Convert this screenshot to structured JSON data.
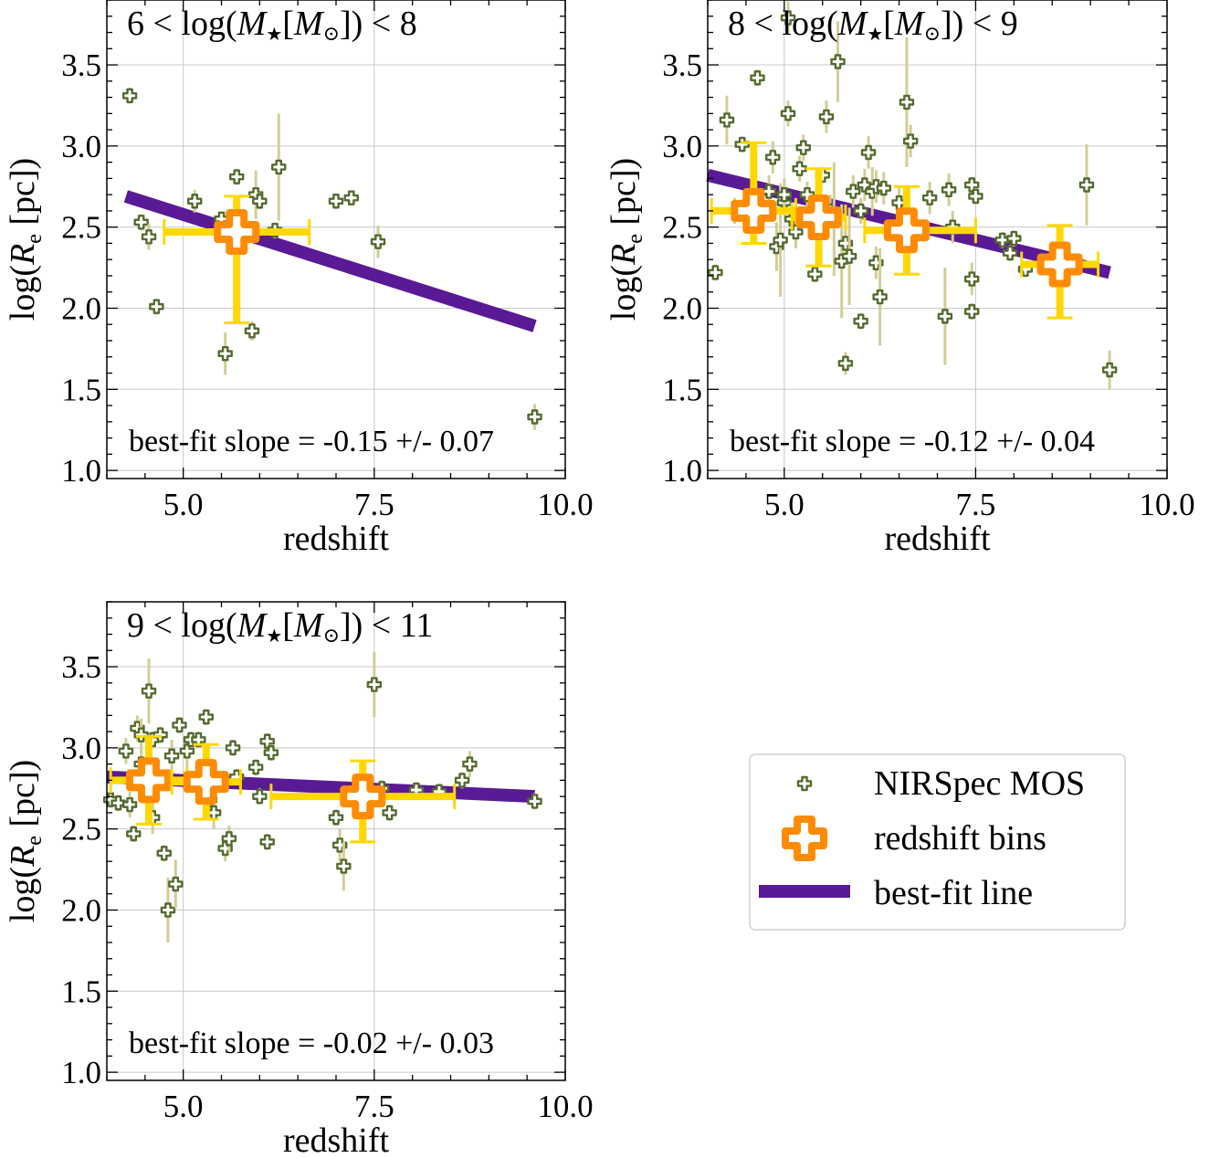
{
  "colors": {
    "point_edge": "#556b2f",
    "point_err": "#d2cd96",
    "bin_marker": "#ff8c00",
    "bin_err": "#ffd700",
    "fit_line": "#5a1a96",
    "grid": "#c8c8c8"
  },
  "legend": {
    "items": [
      {
        "label": "NIRSpec MOS",
        "kind": "points"
      },
      {
        "label": "redshift bins",
        "kind": "bins"
      },
      {
        "label": "best-fit line",
        "kind": "line"
      }
    ]
  },
  "chart_data": [
    {
      "type": "scatter",
      "title": "6 < log(M★[M⊙]) < 8",
      "title_parts": {
        "lead": "6 < log(",
        "m": "M",
        "star": "★",
        "open": "[",
        "msun": "M",
        "sun": "⊙",
        "close": "]) < 8"
      },
      "xlabel": "redshift",
      "ylabel_parts": {
        "lead": "log(",
        "r": "R",
        "sub": "e",
        "tail": " [pc])"
      },
      "xlim": [
        4.0,
        10.0
      ],
      "ylim": [
        0.95,
        3.9
      ],
      "xticks": [
        "5.0",
        "7.5",
        "10.0"
      ],
      "yticks": [
        "1.0",
        "1.5",
        "2.0",
        "2.5",
        "3.0",
        "3.5"
      ],
      "slope_text": "best-fit slope = -0.15 +/- 0.07",
      "fit_line": {
        "x": [
          4.25,
          9.6
        ],
        "y": [
          2.69,
          1.89
        ]
      },
      "points": [
        {
          "x": 4.3,
          "y": 3.31,
          "yerr": 0.05
        },
        {
          "x": 4.45,
          "y": 2.53,
          "yerr": 0.05
        },
        {
          "x": 4.55,
          "y": 2.44,
          "yerr": 0.08
        },
        {
          "x": 4.65,
          "y": 2.01,
          "yerr": 0.05
        },
        {
          "x": 5.15,
          "y": 2.66,
          "yerr": 0.07
        },
        {
          "x": 5.5,
          "y": 2.55,
          "yerr": 0.04
        },
        {
          "x": 5.55,
          "y": 1.72,
          "yerr": 0.13
        },
        {
          "x": 5.65,
          "y": 2.45,
          "yerr": 0.05
        },
        {
          "x": 5.7,
          "y": 2.81,
          "yerr": 0.05
        },
        {
          "x": 5.9,
          "y": 1.86,
          "yerr": 0.06
        },
        {
          "x": 5.95,
          "y": 2.7,
          "yerr": 0.15
        },
        {
          "x": 6.0,
          "y": 2.66,
          "yerr": 0.05
        },
        {
          "x": 6.2,
          "y": 2.48,
          "yerr": 0.05
        },
        {
          "x": 6.25,
          "y": 2.87,
          "yerr": 0.33
        },
        {
          "x": 7.0,
          "y": 2.66,
          "yerr": 0.04
        },
        {
          "x": 7.2,
          "y": 2.68,
          "yerr": 0.04
        },
        {
          "x": 7.55,
          "y": 2.41,
          "yerr": 0.1
        },
        {
          "x": 9.6,
          "y": 1.33,
          "yerr": 0.08
        }
      ],
      "bins": [
        {
          "x": 5.7,
          "y": 2.47,
          "xerr": [
            0.95,
            0.95
          ],
          "yerr": [
            0.56,
            0.22
          ]
        }
      ]
    },
    {
      "type": "scatter",
      "title": "8 < log(M★[M⊙]) < 9",
      "title_parts": {
        "lead": "8 < log(",
        "m": "M",
        "star": "★",
        "open": "[",
        "msun": "M",
        "sun": "⊙",
        "close": "]) < 9"
      },
      "xlabel": "redshift",
      "ylabel_parts": {
        "lead": "log(",
        "r": "R",
        "sub": "e",
        "tail": " [pc])"
      },
      "xlim": [
        4.0,
        10.0
      ],
      "ylim": [
        0.95,
        3.9
      ],
      "xticks": [
        "5.0",
        "7.5",
        "10.0"
      ],
      "yticks": [
        "1.0",
        "1.5",
        "2.0",
        "2.5",
        "3.0",
        "3.5"
      ],
      "slope_text": "best-fit slope = -0.12 +/- 0.04",
      "fit_line": {
        "x": [
          4.0,
          9.25
        ],
        "y": [
          2.82,
          2.22
        ]
      },
      "points": [
        {
          "x": 4.1,
          "y": 2.22,
          "yerr": 0.05
        },
        {
          "x": 4.25,
          "y": 3.16,
          "yerr": 0.15
        },
        {
          "x": 4.35,
          "y": 2.6,
          "yerr": 0.08
        },
        {
          "x": 4.45,
          "y": 3.01,
          "yerr": 0.05
        },
        {
          "x": 4.65,
          "y": 3.42,
          "yerr": 0.05
        },
        {
          "x": 4.8,
          "y": 2.72,
          "yerr": 0.1
        },
        {
          "x": 4.85,
          "y": 2.93,
          "yerr": 0.1
        },
        {
          "x": 4.9,
          "y": 2.38,
          "yerr": 0.15
        },
        {
          "x": 4.95,
          "y": 2.42,
          "yerr": 0.35
        },
        {
          "x": 5.0,
          "y": 2.65,
          "yerr": 0.08
        },
        {
          "x": 5.0,
          "y": 2.7,
          "yerr": 0.1
        },
        {
          "x": 5.05,
          "y": 3.79,
          "yerr": 0.1
        },
        {
          "x": 5.05,
          "y": 3.2,
          "yerr": 0.08
        },
        {
          "x": 5.1,
          "y": 2.55,
          "yerr": 0.1
        },
        {
          "x": 5.15,
          "y": 2.47,
          "yerr": 0.1
        },
        {
          "x": 5.2,
          "y": 2.86,
          "yerr": 0.08
        },
        {
          "x": 5.25,
          "y": 2.99,
          "yerr": 0.08
        },
        {
          "x": 5.3,
          "y": 2.7,
          "yerr": 0.08
        },
        {
          "x": 5.4,
          "y": 2.21,
          "yerr": 0.05
        },
        {
          "x": 5.5,
          "y": 2.82,
          "yerr": 0.05
        },
        {
          "x": 5.55,
          "y": 3.18,
          "yerr": 0.1
        },
        {
          "x": 5.6,
          "y": 2.6,
          "yerr": 0.1
        },
        {
          "x": 5.65,
          "y": 2.55,
          "yerr": 0.35
        },
        {
          "x": 5.7,
          "y": 3.52,
          "yerr": 0.25
        },
        {
          "x": 5.75,
          "y": 2.29,
          "yerr": 0.35
        },
        {
          "x": 5.8,
          "y": 2.4,
          "yerr": 0.1
        },
        {
          "x": 5.8,
          "y": 1.66,
          "yerr": 0.07
        },
        {
          "x": 5.85,
          "y": 2.32,
          "yerr": 0.3
        },
        {
          "x": 5.9,
          "y": 2.72,
          "yerr": 0.1
        },
        {
          "x": 6.0,
          "y": 1.92,
          "yerr": 0.05
        },
        {
          "x": 6.0,
          "y": 2.6,
          "yerr": 0.08
        },
        {
          "x": 6.05,
          "y": 2.76,
          "yerr": 0.1
        },
        {
          "x": 6.1,
          "y": 2.96,
          "yerr": 0.1
        },
        {
          "x": 6.15,
          "y": 2.72,
          "yerr": 0.15
        },
        {
          "x": 6.2,
          "y": 2.75,
          "yerr": 0.1
        },
        {
          "x": 6.2,
          "y": 2.28,
          "yerr": 0.1
        },
        {
          "x": 6.25,
          "y": 2.07,
          "yerr": 0.3
        },
        {
          "x": 6.3,
          "y": 2.74,
          "yerr": 0.1
        },
        {
          "x": 6.5,
          "y": 2.65,
          "yerr": 0.1
        },
        {
          "x": 6.6,
          "y": 3.27,
          "yerr": 0.4
        },
        {
          "x": 6.65,
          "y": 3.03,
          "yerr": 0.1
        },
        {
          "x": 6.9,
          "y": 2.68,
          "yerr": 0.1
        },
        {
          "x": 7.1,
          "y": 1.95,
          "yerr": 0.3
        },
        {
          "x": 7.15,
          "y": 2.73,
          "yerr": 0.1
        },
        {
          "x": 7.2,
          "y": 2.5,
          "yerr": 0.1
        },
        {
          "x": 7.45,
          "y": 2.76,
          "yerr": 0.05
        },
        {
          "x": 7.5,
          "y": 2.69,
          "yerr": 0.05
        },
        {
          "x": 7.45,
          "y": 2.18,
          "yerr": 0.1
        },
        {
          "x": 7.45,
          "y": 1.98,
          "yerr": 0.05
        },
        {
          "x": 7.85,
          "y": 2.42,
          "yerr": 0.05
        },
        {
          "x": 7.95,
          "y": 2.34,
          "yerr": 0.05
        },
        {
          "x": 8.0,
          "y": 2.43,
          "yerr": 0.05
        },
        {
          "x": 8.15,
          "y": 2.24,
          "yerr": 0.05
        },
        {
          "x": 8.95,
          "y": 2.76,
          "yerr": 0.25
        },
        {
          "x": 9.25,
          "y": 1.62,
          "yerr": 0.12
        }
      ],
      "bins": [
        {
          "x": 4.6,
          "y": 2.6,
          "xerr": [
            0.55,
            0.55
          ],
          "yerr": [
            0.2,
            0.42
          ]
        },
        {
          "x": 5.45,
          "y": 2.56,
          "xerr": [
            0.35,
            0.35
          ],
          "yerr": [
            0.3,
            0.3
          ]
        },
        {
          "x": 6.6,
          "y": 2.48,
          "xerr": [
            0.55,
            0.9
          ],
          "yerr": [
            0.27,
            0.27
          ]
        },
        {
          "x": 8.6,
          "y": 2.27,
          "xerr": [
            0.5,
            0.5
          ],
          "yerr": [
            0.33,
            0.24
          ]
        }
      ]
    },
    {
      "type": "scatter",
      "title": "9 < log(M★[M⊙]) < 11",
      "title_parts": {
        "lead": "9 < log(",
        "m": "M",
        "star": "★",
        "open": "[",
        "msun": "M",
        "sun": "⊙",
        "close": "]) < 11"
      },
      "xlabel": "redshift",
      "ylabel_parts": {
        "lead": "log(",
        "r": "R",
        "sub": "e",
        "tail": " [pc])"
      },
      "xlim": [
        4.0,
        10.0
      ],
      "ylim": [
        0.95,
        3.9
      ],
      "xticks": [
        "5.0",
        "7.5",
        "10.0"
      ],
      "yticks": [
        "1.0",
        "1.5",
        "2.0",
        "2.5",
        "3.0",
        "3.5"
      ],
      "slope_text": "best-fit slope = -0.02 +/- 0.03",
      "fit_line": {
        "x": [
          4.0,
          9.6
        ],
        "y": [
          2.82,
          2.7
        ]
      },
      "points": [
        {
          "x": 4.05,
          "y": 2.68,
          "yerr": 0.05
        },
        {
          "x": 4.15,
          "y": 2.66,
          "yerr": 0.05
        },
        {
          "x": 4.25,
          "y": 2.98,
          "yerr": 0.08
        },
        {
          "x": 4.3,
          "y": 2.65,
          "yerr": 0.08
        },
        {
          "x": 4.35,
          "y": 2.47,
          "yerr": 0.05
        },
        {
          "x": 4.4,
          "y": 3.12,
          "yerr": 0.08
        },
        {
          "x": 4.45,
          "y": 3.08,
          "yerr": 0.1
        },
        {
          "x": 4.45,
          "y": 2.9,
          "yerr": 0.1
        },
        {
          "x": 4.55,
          "y": 3.35,
          "yerr": 0.2
        },
        {
          "x": 4.6,
          "y": 3.05,
          "yerr": 0.05
        },
        {
          "x": 4.6,
          "y": 2.57,
          "yerr": 0.1
        },
        {
          "x": 4.7,
          "y": 3.08,
          "yerr": 0.05
        },
        {
          "x": 4.75,
          "y": 2.35,
          "yerr": 0.05
        },
        {
          "x": 4.8,
          "y": 2.0,
          "yerr": 0.2
        },
        {
          "x": 4.85,
          "y": 2.95,
          "yerr": 0.1
        },
        {
          "x": 4.9,
          "y": 2.16,
          "yerr": 0.15
        },
        {
          "x": 4.95,
          "y": 3.14,
          "yerr": 0.05
        },
        {
          "x": 5.05,
          "y": 2.98,
          "yerr": 0.1
        },
        {
          "x": 5.1,
          "y": 3.05,
          "yerr": 0.05
        },
        {
          "x": 5.2,
          "y": 3.05,
          "yerr": 0.05
        },
        {
          "x": 5.3,
          "y": 3.19,
          "yerr": 0.05
        },
        {
          "x": 5.35,
          "y": 2.68,
          "yerr": 0.1
        },
        {
          "x": 5.4,
          "y": 2.6,
          "yerr": 0.1
        },
        {
          "x": 5.55,
          "y": 2.38,
          "yerr": 0.08
        },
        {
          "x": 5.6,
          "y": 2.44,
          "yerr": 0.08
        },
        {
          "x": 5.65,
          "y": 3.0,
          "yerr": 0.05
        },
        {
          "x": 5.7,
          "y": 2.82,
          "yerr": 0.05
        },
        {
          "x": 5.95,
          "y": 2.88,
          "yerr": 0.05
        },
        {
          "x": 6.0,
          "y": 2.7,
          "yerr": 0.05
        },
        {
          "x": 6.1,
          "y": 2.42,
          "yerr": 0.05
        },
        {
          "x": 6.1,
          "y": 3.04,
          "yerr": 0.05
        },
        {
          "x": 6.15,
          "y": 2.97,
          "yerr": 0.05
        },
        {
          "x": 7.0,
          "y": 2.57,
          "yerr": 0.05
        },
        {
          "x": 7.05,
          "y": 2.4,
          "yerr": 0.1
        },
        {
          "x": 7.1,
          "y": 2.27,
          "yerr": 0.15
        },
        {
          "x": 7.5,
          "y": 3.39,
          "yerr": 0.2
        },
        {
          "x": 7.6,
          "y": 2.75,
          "yerr": 0.05
        },
        {
          "x": 7.7,
          "y": 2.6,
          "yerr": 0.05
        },
        {
          "x": 8.05,
          "y": 2.74,
          "yerr": 0.05
        },
        {
          "x": 8.35,
          "y": 2.73,
          "yerr": 0.05
        },
        {
          "x": 8.65,
          "y": 2.8,
          "yerr": 0.05
        },
        {
          "x": 8.75,
          "y": 2.9,
          "yerr": 0.08
        },
        {
          "x": 9.6,
          "y": 2.67,
          "yerr": 0.05
        }
      ],
      "bins": [
        {
          "x": 4.55,
          "y": 2.8,
          "xerr": [
            0.5,
            0.5
          ],
          "yerr": [
            0.27,
            0.27
          ]
        },
        {
          "x": 5.3,
          "y": 2.79,
          "xerr": [
            0.45,
            0.45
          ],
          "yerr": [
            0.23,
            0.23
          ]
        },
        {
          "x": 7.35,
          "y": 2.7,
          "xerr": [
            1.2,
            1.2
          ],
          "yerr": [
            0.28,
            0.22
          ]
        }
      ]
    }
  ]
}
